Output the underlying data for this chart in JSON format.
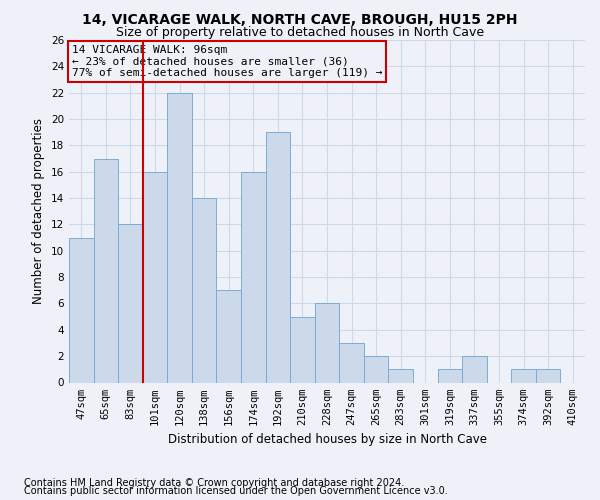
{
  "title": "14, VICARAGE WALK, NORTH CAVE, BROUGH, HU15 2PH",
  "subtitle": "Size of property relative to detached houses in North Cave",
  "xlabel": "Distribution of detached houses by size in North Cave",
  "ylabel": "Number of detached properties",
  "categories": [
    "47sqm",
    "65sqm",
    "83sqm",
    "101sqm",
    "120sqm",
    "138sqm",
    "156sqm",
    "174sqm",
    "192sqm",
    "210sqm",
    "228sqm",
    "247sqm",
    "265sqm",
    "283sqm",
    "301sqm",
    "319sqm",
    "337sqm",
    "355sqm",
    "374sqm",
    "392sqm",
    "410sqm"
  ],
  "values": [
    11,
    17,
    12,
    16,
    22,
    14,
    7,
    16,
    19,
    5,
    6,
    3,
    2,
    1,
    0,
    1,
    2,
    0,
    1,
    1,
    0
  ],
  "bar_color": "#ccd9ea",
  "bar_edge_color": "#7aadd4",
  "vline_x_index": 2,
  "vline_color": "#cc0000",
  "ylim": [
    0,
    26
  ],
  "yticks": [
    0,
    2,
    4,
    6,
    8,
    10,
    12,
    14,
    16,
    18,
    20,
    22,
    24,
    26
  ],
  "annotation_text": "14 VICARAGE WALK: 96sqm\n← 23% of detached houses are smaller (36)\n77% of semi-detached houses are larger (119) →",
  "annotation_box_edge": "#cc0000",
  "footer1": "Contains HM Land Registry data © Crown copyright and database right 2024.",
  "footer2": "Contains public sector information licensed under the Open Government Licence v3.0.",
  "bg_color": "#eef2f8",
  "grid_color": "#d0d8e8",
  "title_fontsize": 10,
  "subtitle_fontsize": 9,
  "axis_label_fontsize": 8.5,
  "tick_fontsize": 7.5,
  "annotation_fontsize": 8,
  "footer_fontsize": 7
}
